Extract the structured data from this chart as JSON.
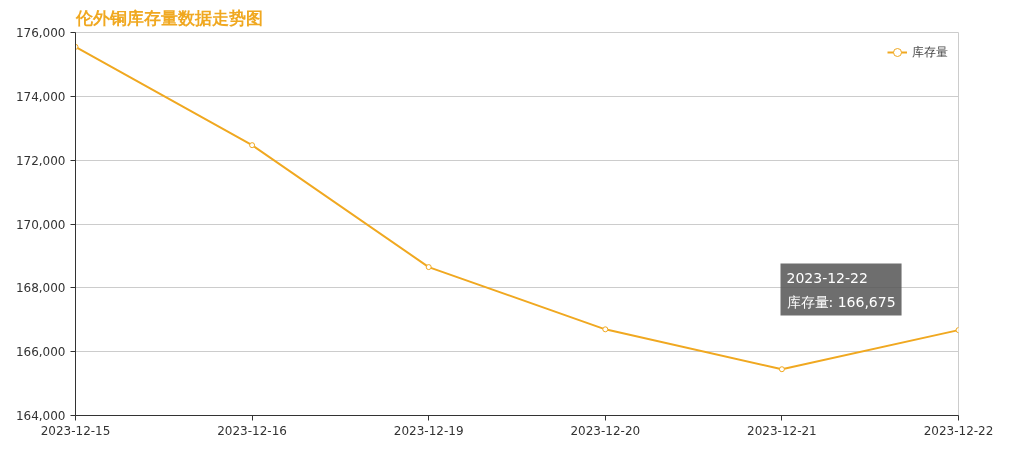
{
  "chart_data": {
    "type": "line",
    "title": "伦外铜库存量数据走势图",
    "categories": [
      "2023-12-15",
      "2023-12-16",
      "2023-12-19",
      "2023-12-20",
      "2023-12-21",
      "2023-12-22"
    ],
    "series": [
      {
        "name": "库存量",
        "color": "#f0a820",
        "values": [
          175550,
          172470,
          168650,
          166700,
          165450,
          166675
        ]
      }
    ],
    "ylim": [
      164000,
      176000
    ],
    "yticks": [
      {
        "value": 164000,
        "label": "164,000"
      },
      {
        "value": 166000,
        "label": "166,000"
      },
      {
        "value": 168000,
        "label": "168,000"
      },
      {
        "value": 170000,
        "label": "170,000"
      },
      {
        "value": 172000,
        "label": "172,000"
      },
      {
        "value": 174000,
        "label": "174,000"
      },
      {
        "value": 176000,
        "label": "176,000"
      }
    ],
    "grid": "y",
    "legend": "top right",
    "marker": "circle",
    "line_style": "solid",
    "annotations": [
      "2023-12-22\n库存量: 166,675"
    ]
  }
}
